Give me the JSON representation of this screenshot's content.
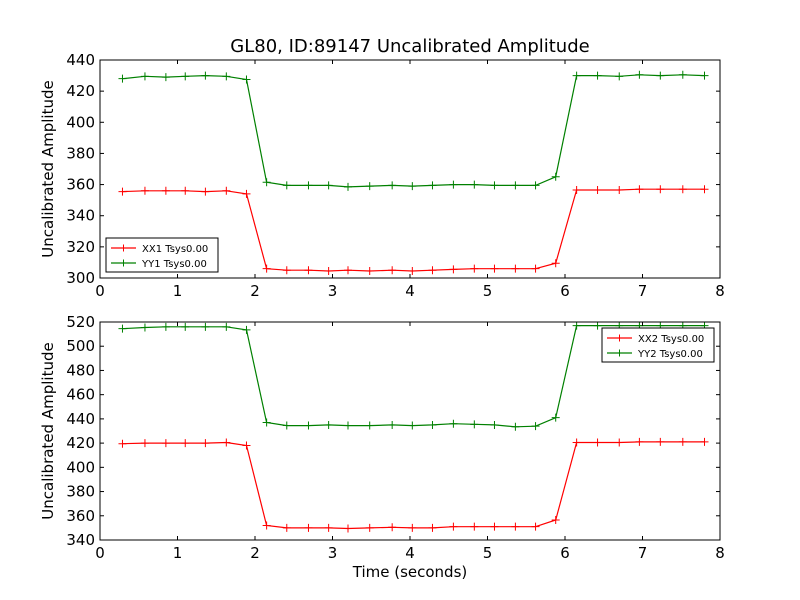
{
  "title": "GL80, ID:89147 Uncalibrated Amplitude",
  "chart_data": [
    {
      "type": "line",
      "title": "GL80, ID:89147 Uncalibrated Amplitude",
      "xlabel": "",
      "ylabel": "Uncalibrated Amplitude",
      "xlim": [
        0,
        8
      ],
      "ylim": [
        300,
        440
      ],
      "xticks": [
        "0",
        "1",
        "2",
        "3",
        "4",
        "5",
        "6",
        "7",
        "8"
      ],
      "yticks": [
        "300",
        "320",
        "340",
        "360",
        "380",
        "400",
        "420",
        "440"
      ],
      "legend_position": "lower-left",
      "x": [
        0.29,
        0.58,
        0.85,
        1.1,
        1.36,
        1.63,
        1.89,
        2.15,
        2.41,
        2.69,
        2.95,
        3.2,
        3.48,
        3.77,
        4.03,
        4.29,
        4.56,
        4.83,
        5.09,
        5.36,
        5.62,
        5.88,
        6.15,
        6.42,
        6.7,
        6.96,
        7.23,
        7.52,
        7.8
      ],
      "series": [
        {
          "name": "XX1 Tsys0.00",
          "color": "#ff0000",
          "values": [
            355.5,
            356,
            356,
            356,
            355.5,
            356,
            354,
            306,
            305,
            305,
            304.5,
            305,
            304.5,
            305,
            304.5,
            305,
            305.5,
            306,
            306,
            306,
            306,
            309.5,
            356.5,
            356.5,
            356.5,
            357,
            357,
            357,
            357
          ]
        },
        {
          "name": "YY1 Tsys0.00",
          "color": "#008000",
          "values": [
            428,
            429.5,
            429,
            429.5,
            430,
            429.5,
            427.5,
            361.5,
            359.5,
            359.5,
            359.5,
            358.5,
            359,
            359.5,
            359,
            359.5,
            360,
            360,
            359.5,
            359.5,
            359.5,
            365,
            430,
            430,
            429.5,
            430.5,
            430,
            430.5,
            430
          ]
        }
      ]
    },
    {
      "type": "line",
      "title": "",
      "xlabel": "Time (seconds)",
      "ylabel": "Uncalibrated Amplitude",
      "xlim": [
        0,
        8
      ],
      "ylim": [
        340,
        520
      ],
      "xticks": [
        "0",
        "1",
        "2",
        "3",
        "4",
        "5",
        "6",
        "7",
        "8"
      ],
      "yticks": [
        "340",
        "360",
        "380",
        "400",
        "420",
        "440",
        "460",
        "480",
        "500",
        "520"
      ],
      "legend_position": "upper-right",
      "x": [
        0.29,
        0.58,
        0.85,
        1.1,
        1.36,
        1.63,
        1.89,
        2.15,
        2.41,
        2.69,
        2.95,
        3.2,
        3.48,
        3.77,
        4.03,
        4.29,
        4.56,
        4.83,
        5.09,
        5.36,
        5.62,
        5.88,
        6.15,
        6.42,
        6.7,
        6.96,
        7.23,
        7.52,
        7.8
      ],
      "series": [
        {
          "name": "XX2 Tsys0.00",
          "color": "#ff0000",
          "values": [
            419.5,
            420,
            420,
            420,
            420,
            420.5,
            418,
            352,
            350,
            350,
            350,
            349.5,
            350,
            350.5,
            350,
            350,
            351,
            351,
            351,
            351,
            351,
            356.5,
            420.5,
            420.5,
            420.5,
            421,
            421,
            421,
            421
          ]
        },
        {
          "name": "YY2 Tsys0.00",
          "color": "#008000",
          "values": [
            514.5,
            515.5,
            516,
            516,
            516,
            516,
            513.5,
            437,
            434.5,
            434.5,
            435,
            434.5,
            434.5,
            435,
            434.5,
            435,
            436,
            435.5,
            435,
            433.5,
            434,
            441,
            517,
            517,
            517,
            517,
            517,
            517,
            517
          ]
        }
      ]
    }
  ]
}
